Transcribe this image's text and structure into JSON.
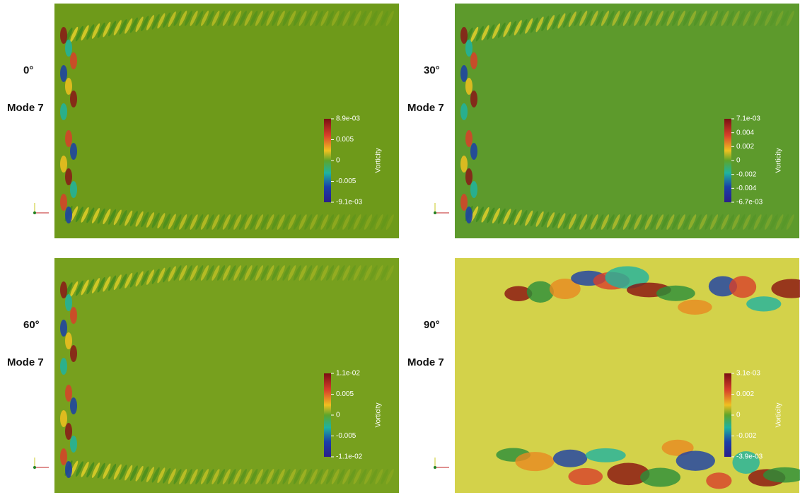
{
  "panels": [
    {
      "angle": "0°",
      "mode": "Mode 7",
      "colorbar": {
        "label": "Vorticity",
        "ticks": [
          "8.9e-03",
          "0.005",
          "0",
          "-0.005",
          "-9.1e-03"
        ]
      }
    },
    {
      "angle": "30°",
      "mode": "Mode 7",
      "colorbar": {
        "label": "Vorticity",
        "ticks": [
          "7.1e-03",
          "0.004",
          "0.002",
          "0",
          "-0.002",
          "-0.004",
          "-6.7e-03"
        ]
      }
    },
    {
      "angle": "60°",
      "mode": "Mode 7",
      "colorbar": {
        "label": "Vorticity",
        "ticks": [
          "1.1e-02",
          "0.005",
          "0",
          "-0.005",
          "-1.1e-02"
        ]
      }
    },
    {
      "angle": "90°",
      "mode": "Mode 7",
      "colorbar": {
        "label": "Vorticity",
        "ticks": [
          "3.1e-03",
          "0.002",
          "0",
          "-0.002",
          "-3.9e-03"
        ]
      }
    }
  ]
}
